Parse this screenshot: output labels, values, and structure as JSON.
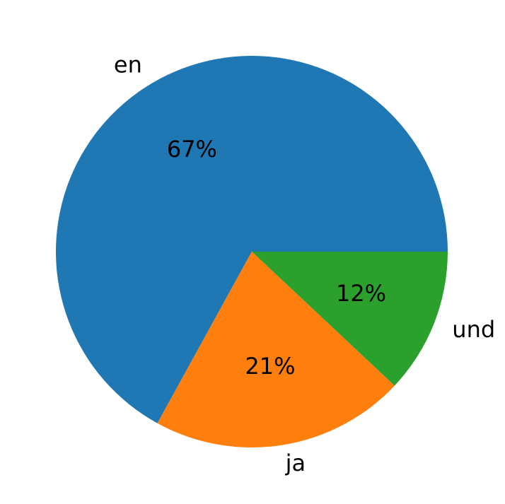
{
  "chart_data": {
    "type": "pie",
    "categories": [
      "en",
      "ja",
      "und"
    ],
    "values": [
      67,
      21,
      12
    ],
    "value_labels": [
      "67%",
      "21%",
      "12%"
    ],
    "colors": [
      "#1f77b4",
      "#ff7f0e",
      "#2ca02c"
    ],
    "start_angle": 0,
    "direction": "counterclockwise"
  }
}
